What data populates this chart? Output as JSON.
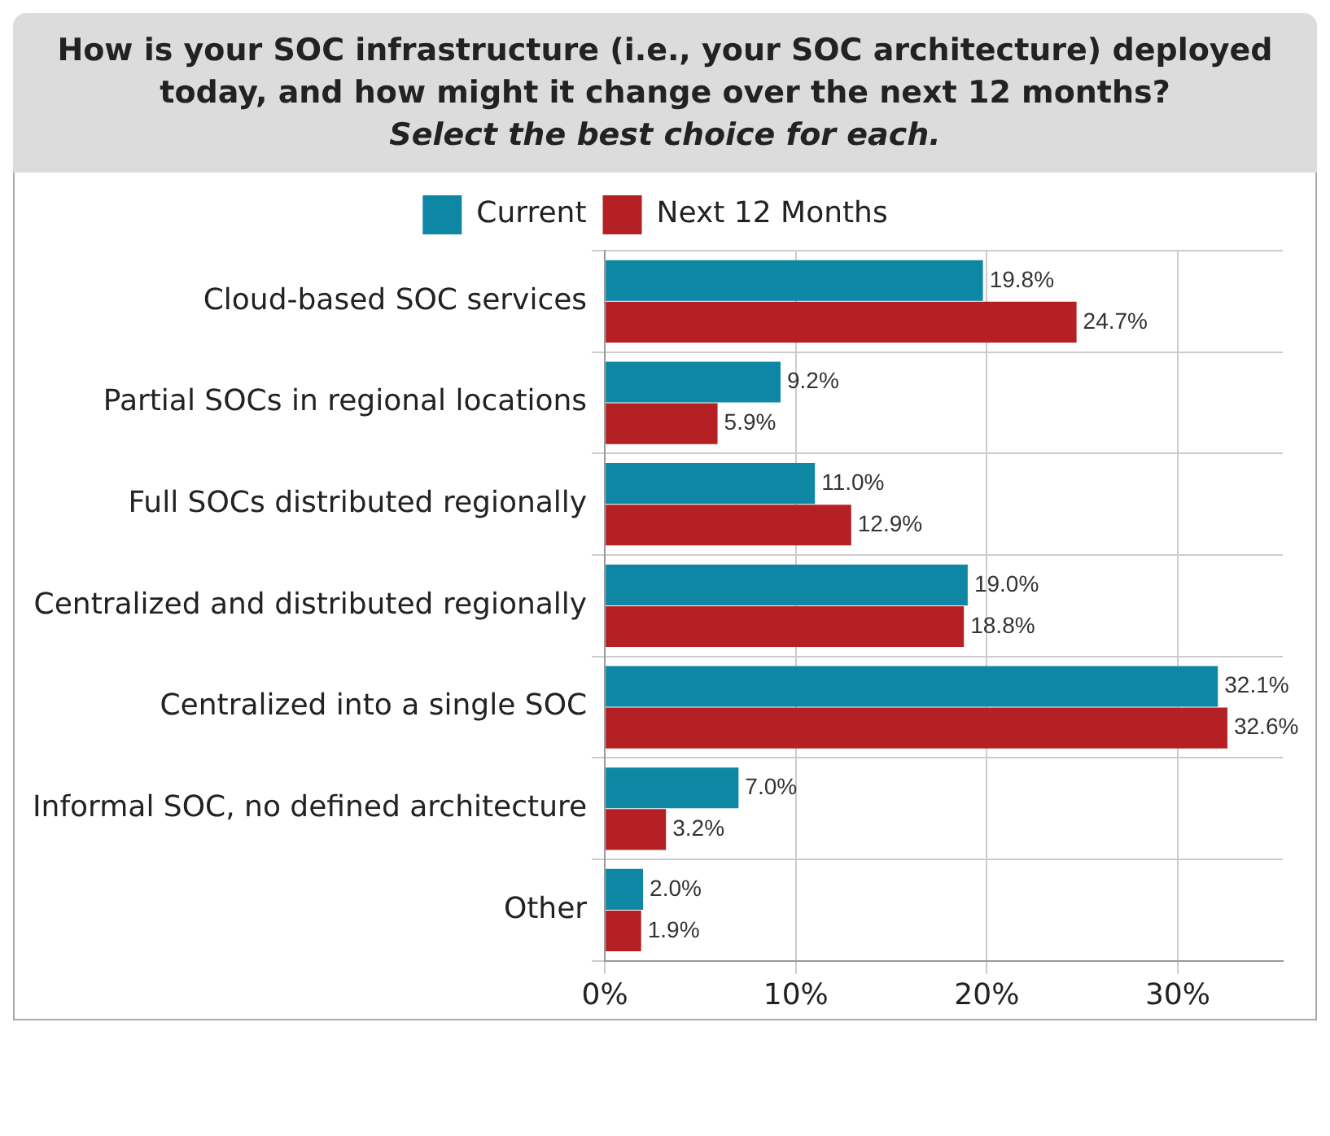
{
  "chart_data": {
    "type": "bar",
    "orientation": "horizontal",
    "title": "How is your SOC infrastructure (i.e., your SOC architecture) deployed today, and how might it change over the next 12 months?",
    "subtitle": "Select the best choice for each.",
    "categories": [
      "Cloud-based SOC services",
      "Partial SOCs in regional locations",
      "Full SOCs distributed regionally",
      "Centralized and distributed regionally",
      "Centralized into a single SOC",
      "Informal SOC, no defined architecture",
      "Other"
    ],
    "series": [
      {
        "name": "Current",
        "color": "#0e87a5",
        "values": [
          19.8,
          9.2,
          11.0,
          19.0,
          32.1,
          7.0,
          2.0
        ],
        "value_labels": [
          "19.8%",
          "9.2%",
          "11.0%",
          "19.0%",
          "32.1%",
          "7.0%",
          "2.0%"
        ]
      },
      {
        "name": "Next 12 Months",
        "color": "#b52025",
        "values": [
          24.7,
          5.9,
          12.9,
          18.8,
          32.6,
          3.2,
          1.9
        ],
        "value_labels": [
          "24.7%",
          "5.9%",
          "12.9%",
          "18.8%",
          "32.6%",
          "3.2%",
          "1.9%"
        ]
      }
    ],
    "xlim": [
      0,
      35.5
    ],
    "xticks": [
      {
        "value": 0,
        "label": "0%"
      },
      {
        "value": 10,
        "label": "10%"
      },
      {
        "value": 20,
        "label": "20%"
      },
      {
        "value": 30,
        "label": "30%"
      }
    ],
    "grid": true,
    "legend": "top"
  }
}
